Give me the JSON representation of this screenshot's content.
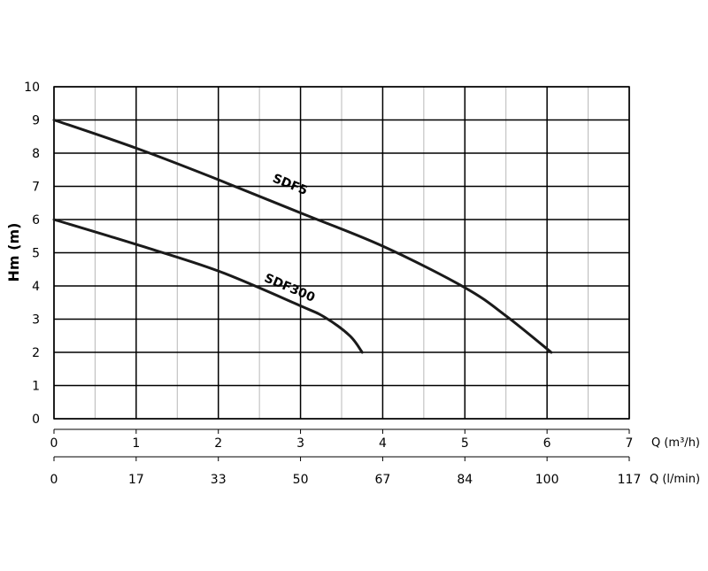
{
  "chart_data": {
    "type": "line",
    "ylabel": "Hm (m)",
    "xlabel_primary": "Q (m³/h)",
    "xlabel_secondary": "Q (l/min)",
    "ylim": [
      0,
      10
    ],
    "xlim": [
      0,
      7
    ],
    "y_ticks": [
      "0",
      "1",
      "2",
      "3",
      "4",
      "5",
      "6",
      "7",
      "8",
      "9",
      "10"
    ],
    "x_ticks_primary": [
      "0",
      "1",
      "2",
      "3",
      "4",
      "5",
      "6",
      "7"
    ],
    "x_ticks_secondary": [
      "0",
      "17",
      "33",
      "50",
      "67",
      "84",
      "100",
      "117"
    ],
    "grid": true,
    "series": [
      {
        "name": "SDF5",
        "x": [
          0,
          1,
          2,
          3,
          4,
          5,
          5.5,
          6.05
        ],
        "y": [
          9,
          8.15,
          7.2,
          6.2,
          5.2,
          3.95,
          3.1,
          2
        ]
      },
      {
        "name": "SDF300",
        "x": [
          0,
          1,
          2,
          3,
          3.3,
          3.6,
          3.75
        ],
        "y": [
          6,
          5.25,
          4.45,
          3.4,
          3.05,
          2.5,
          2
        ]
      }
    ]
  }
}
